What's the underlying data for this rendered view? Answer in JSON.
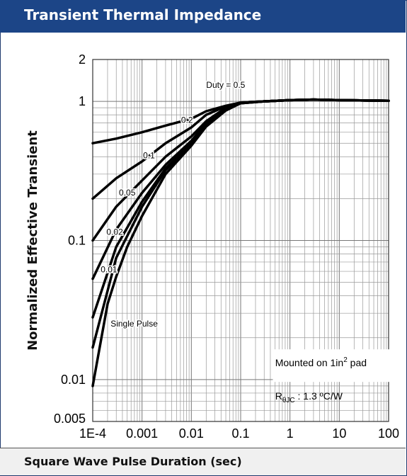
{
  "header": {
    "title": "Transient Thermal Impedance"
  },
  "footer": {
    "xlabel": "Square Wave Pulse Duration (sec)"
  },
  "colors": {
    "header_bg": "#1c4587",
    "grid": "#999999",
    "curve": "#000000"
  },
  "chart_data": {
    "type": "line",
    "title": "Transient Thermal Impedance",
    "xlabel": "Square Wave Pulse Duration (sec)",
    "ylabel": "Normalized Effective Transient",
    "xscale": "log",
    "yscale": "log",
    "xlim": [
      0.0001,
      100
    ],
    "ylim": [
      0.005,
      2
    ],
    "grid": true,
    "x_ticks": [
      {
        "value": 0.0001,
        "label": "1E-4"
      },
      {
        "value": 0.001,
        "label": "0.001"
      },
      {
        "value": 0.01,
        "label": "0.01"
      },
      {
        "value": 0.1,
        "label": "0.1"
      },
      {
        "value": 1,
        "label": "1"
      },
      {
        "value": 10,
        "label": "10"
      },
      {
        "value": 100,
        "label": "100"
      }
    ],
    "y_ticks": [
      {
        "value": 0.005,
        "label": "0.005"
      },
      {
        "value": 0.01,
        "label": "0.01"
      },
      {
        "value": 0.1,
        "label": "0.1"
      },
      {
        "value": 1,
        "label": "1"
      },
      {
        "value": 2,
        "label": "2"
      }
    ],
    "series": [
      {
        "name": "Duty = 0.5",
        "label": "Duty = 0.5",
        "label_at": [
          0.02,
          1.25
        ],
        "points": [
          [
            0.0001,
            0.5
          ],
          [
            0.0003,
            0.54
          ],
          [
            0.001,
            0.6
          ],
          [
            0.003,
            0.67
          ],
          [
            0.01,
            0.75
          ],
          [
            0.02,
            0.85
          ],
          [
            0.05,
            0.93
          ],
          [
            0.1,
            0.98
          ],
          [
            0.3,
            1.0
          ],
          [
            1,
            1.02
          ],
          [
            3,
            1.03
          ],
          [
            10,
            1.02
          ],
          [
            100,
            1.01
          ]
        ]
      },
      {
        "name": "0.2",
        "label": "0.2",
        "label_at": [
          0.0062,
          0.7
        ],
        "points": [
          [
            0.0001,
            0.2
          ],
          [
            0.0003,
            0.28
          ],
          [
            0.001,
            0.37
          ],
          [
            0.003,
            0.5
          ],
          [
            0.01,
            0.65
          ],
          [
            0.02,
            0.8
          ],
          [
            0.05,
            0.92
          ],
          [
            0.1,
            0.98
          ],
          [
            0.3,
            1.0
          ],
          [
            1,
            1.02
          ],
          [
            3,
            1.03
          ],
          [
            10,
            1.02
          ],
          [
            100,
            1.01
          ]
        ]
      },
      {
        "name": "0.1",
        "label": "0.1",
        "label_at": [
          0.00105,
          0.39
        ],
        "points": [
          [
            0.0001,
            0.1
          ],
          [
            0.0003,
            0.175
          ],
          [
            0.001,
            0.27
          ],
          [
            0.003,
            0.4
          ],
          [
            0.01,
            0.56
          ],
          [
            0.02,
            0.72
          ],
          [
            0.05,
            0.9
          ],
          [
            0.1,
            0.98
          ],
          [
            0.3,
            1.0
          ],
          [
            1,
            1.02
          ],
          [
            3,
            1.03
          ],
          [
            10,
            1.02
          ],
          [
            100,
            1.01
          ]
        ]
      },
      {
        "name": "0.05",
        "label": "0.05",
        "label_at": [
          0.00034,
          0.21
        ],
        "points": [
          [
            0.0001,
            0.053
          ],
          [
            0.0003,
            0.12
          ],
          [
            0.001,
            0.22
          ],
          [
            0.003,
            0.35
          ],
          [
            0.01,
            0.52
          ],
          [
            0.02,
            0.7
          ],
          [
            0.05,
            0.89
          ],
          [
            0.1,
            0.98
          ],
          [
            0.3,
            1.0
          ],
          [
            1,
            1.02
          ],
          [
            3,
            1.03
          ],
          [
            10,
            1.02
          ],
          [
            100,
            1.01
          ]
        ]
      },
      {
        "name": "0.02",
        "label": "0.02",
        "label_at": [
          0.00019,
          0.11
        ],
        "points": [
          [
            0.0001,
            0.028
          ],
          [
            0.0003,
            0.09
          ],
          [
            0.001,
            0.19
          ],
          [
            0.003,
            0.33
          ],
          [
            0.01,
            0.5
          ],
          [
            0.02,
            0.68
          ],
          [
            0.05,
            0.88
          ],
          [
            0.1,
            0.97
          ],
          [
            0.3,
            1.0
          ],
          [
            1,
            1.02
          ],
          [
            3,
            1.03
          ],
          [
            10,
            1.02
          ],
          [
            100,
            1.01
          ]
        ]
      },
      {
        "name": "0.01",
        "label": "0.01",
        "label_at": [
          0.000145,
          0.059
        ],
        "points": [
          [
            0.0001,
            0.017
          ],
          [
            0.0003,
            0.075
          ],
          [
            0.001,
            0.175
          ],
          [
            0.003,
            0.32
          ],
          [
            0.01,
            0.49
          ],
          [
            0.02,
            0.67
          ],
          [
            0.05,
            0.87
          ],
          [
            0.1,
            0.97
          ],
          [
            0.3,
            1.0
          ],
          [
            1,
            1.02
          ],
          [
            3,
            1.03
          ],
          [
            10,
            1.02
          ],
          [
            100,
            1.01
          ]
        ]
      },
      {
        "name": "Single Pulse",
        "label": "Single Pulse",
        "label_at": [
          0.00023,
          0.024
        ],
        "points": [
          [
            0.0001,
            0.009
          ],
          [
            0.00015,
            0.02
          ],
          [
            0.0002,
            0.035
          ],
          [
            0.0003,
            0.055
          ],
          [
            0.0005,
            0.09
          ],
          [
            0.001,
            0.15
          ],
          [
            0.003,
            0.3
          ],
          [
            0.01,
            0.48
          ],
          [
            0.02,
            0.66
          ],
          [
            0.05,
            0.86
          ],
          [
            0.1,
            0.97
          ],
          [
            0.3,
            1.0
          ],
          [
            1,
            1.02
          ],
          [
            3,
            1.03
          ],
          [
            10,
            1.02
          ],
          [
            100,
            1.01
          ]
        ]
      }
    ],
    "annotations": [
      {
        "lines": [
          "Mounted on 1in",
          "2",
          " pad"
        ],
        "text": "Mounted on 1in² pad",
        "at": [
          0.5,
          0.0125
        ]
      },
      {
        "lines": [
          "R",
          "θJC",
          " : 1.3 ºC/W"
        ],
        "text": "RθJC : 1.3 ºC/W",
        "at": [
          0.5,
          0.0072
        ]
      }
    ]
  }
}
